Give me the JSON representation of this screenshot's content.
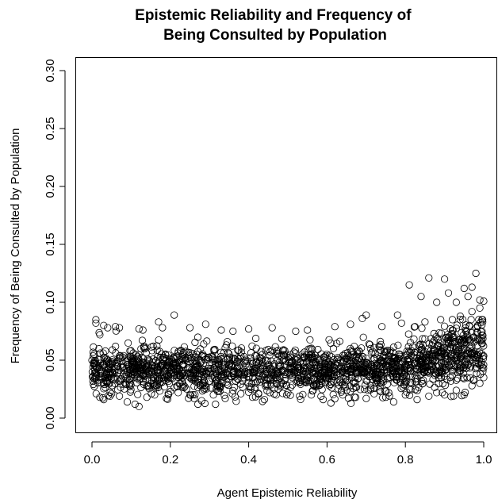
{
  "chart_data": {
    "type": "scatter",
    "title": "Epistemic Reliability and Frequency of\nBeing Consulted by Population",
    "xlabel": "Agent Epistemic Reliability",
    "ylabel": "Frequency of Being Consulted by Population",
    "xlim": [
      0.0,
      1.0
    ],
    "ylim": [
      0.0,
      0.3
    ],
    "x_ticks": [
      0.0,
      0.2,
      0.4,
      0.6,
      0.8,
      1.0
    ],
    "x_tick_labels": [
      "0.0",
      "0.2",
      "0.4",
      "0.6",
      "0.8",
      "1.0"
    ],
    "y_ticks": [
      0.0,
      0.05,
      0.1,
      0.15,
      0.2,
      0.25,
      0.3
    ],
    "y_tick_labels": [
      "0.00",
      "0.05",
      "0.10",
      "0.15",
      "0.20",
      "0.25",
      "0.30"
    ],
    "grid": false,
    "legend": "none",
    "marker": "open-circle",
    "color": "#000000",
    "points": [
      [
        0.01,
        0.085
      ],
      [
        0.01,
        0.082
      ],
      [
        0.02,
        0.072
      ],
      [
        0.03,
        0.08
      ],
      [
        0.04,
        0.078
      ],
      [
        0.06,
        0.079
      ],
      [
        0.07,
        0.078
      ],
      [
        0.12,
        0.077
      ],
      [
        0.13,
        0.076
      ],
      [
        0.17,
        0.083
      ],
      [
        0.18,
        0.078
      ],
      [
        0.21,
        0.089
      ],
      [
        0.25,
        0.078
      ],
      [
        0.29,
        0.081
      ],
      [
        0.33,
        0.076
      ],
      [
        0.36,
        0.075
      ],
      [
        0.4,
        0.077
      ],
      [
        0.46,
        0.078
      ],
      [
        0.52,
        0.075
      ],
      [
        0.55,
        0.076
      ],
      [
        0.62,
        0.079
      ],
      [
        0.66,
        0.081
      ],
      [
        0.69,
        0.086
      ],
      [
        0.7,
        0.089
      ],
      [
        0.74,
        0.079
      ],
      [
        0.78,
        0.089
      ],
      [
        0.79,
        0.082
      ],
      [
        0.81,
        0.115
      ],
      [
        0.84,
        0.105
      ],
      [
        0.86,
        0.121
      ],
      [
        0.88,
        0.1
      ],
      [
        0.9,
        0.12
      ],
      [
        0.91,
        0.108
      ],
      [
        0.93,
        0.1
      ],
      [
        0.95,
        0.112
      ],
      [
        0.96,
        0.105
      ],
      [
        0.97,
        0.113
      ],
      [
        0.98,
        0.125
      ],
      [
        0.99,
        0.102
      ],
      [
        1.0,
        0.101
      ],
      [
        0.99,
        0.095
      ],
      [
        0.97,
        0.092
      ],
      [
        0.94,
        0.088
      ],
      [
        0.92,
        0.085
      ],
      [
        0.89,
        0.085
      ],
      [
        0.85,
        0.083
      ],
      [
        0.0,
        0.05
      ],
      [
        0.01,
        0.045
      ],
      [
        0.02,
        0.035
      ],
      [
        0.02,
        0.018
      ],
      [
        0.03,
        0.016
      ],
      [
        0.05,
        0.021
      ],
      [
        0.07,
        0.019
      ],
      [
        0.09,
        0.014
      ],
      [
        0.11,
        0.012
      ],
      [
        0.12,
        0.01
      ],
      [
        0.14,
        0.018
      ],
      [
        0.16,
        0.02
      ],
      [
        0.19,
        0.017
      ],
      [
        0.22,
        0.022
      ],
      [
        0.25,
        0.02
      ],
      [
        0.28,
        0.015
      ],
      [
        0.31,
        0.02
      ],
      [
        0.34,
        0.017
      ],
      [
        0.38,
        0.021
      ],
      [
        0.41,
        0.018
      ],
      [
        0.44,
        0.016
      ],
      [
        0.47,
        0.02
      ],
      [
        0.5,
        0.022
      ],
      [
        0.53,
        0.019
      ],
      [
        0.56,
        0.02
      ],
      [
        0.59,
        0.016
      ],
      [
        0.61,
        0.013
      ],
      [
        0.64,
        0.02
      ],
      [
        0.67,
        0.018
      ],
      [
        0.7,
        0.017
      ],
      [
        0.72,
        0.021
      ],
      [
        0.75,
        0.018
      ],
      [
        0.77,
        0.014
      ],
      [
        0.8,
        0.02
      ],
      [
        0.83,
        0.016
      ],
      [
        0.86,
        0.019
      ],
      [
        0.88,
        0.022
      ],
      [
        0.9,
        0.02
      ],
      [
        0.93,
        0.024
      ],
      [
        0.95,
        0.02
      ],
      [
        0.97,
        0.028
      ],
      [
        0.99,
        0.03
      ],
      [
        1.0,
        0.035
      ]
    ],
    "cloud": [
      {
        "x_from": 0.0,
        "x_to": 0.8,
        "mean": 0.042,
        "spread": 0.013,
        "count": 1500
      },
      {
        "x_from": 0.8,
        "x_to": 1.0,
        "mean_start": 0.045,
        "mean_end": 0.06,
        "spread_start": 0.014,
        "spread_end": 0.02,
        "count": 450
      }
    ]
  }
}
